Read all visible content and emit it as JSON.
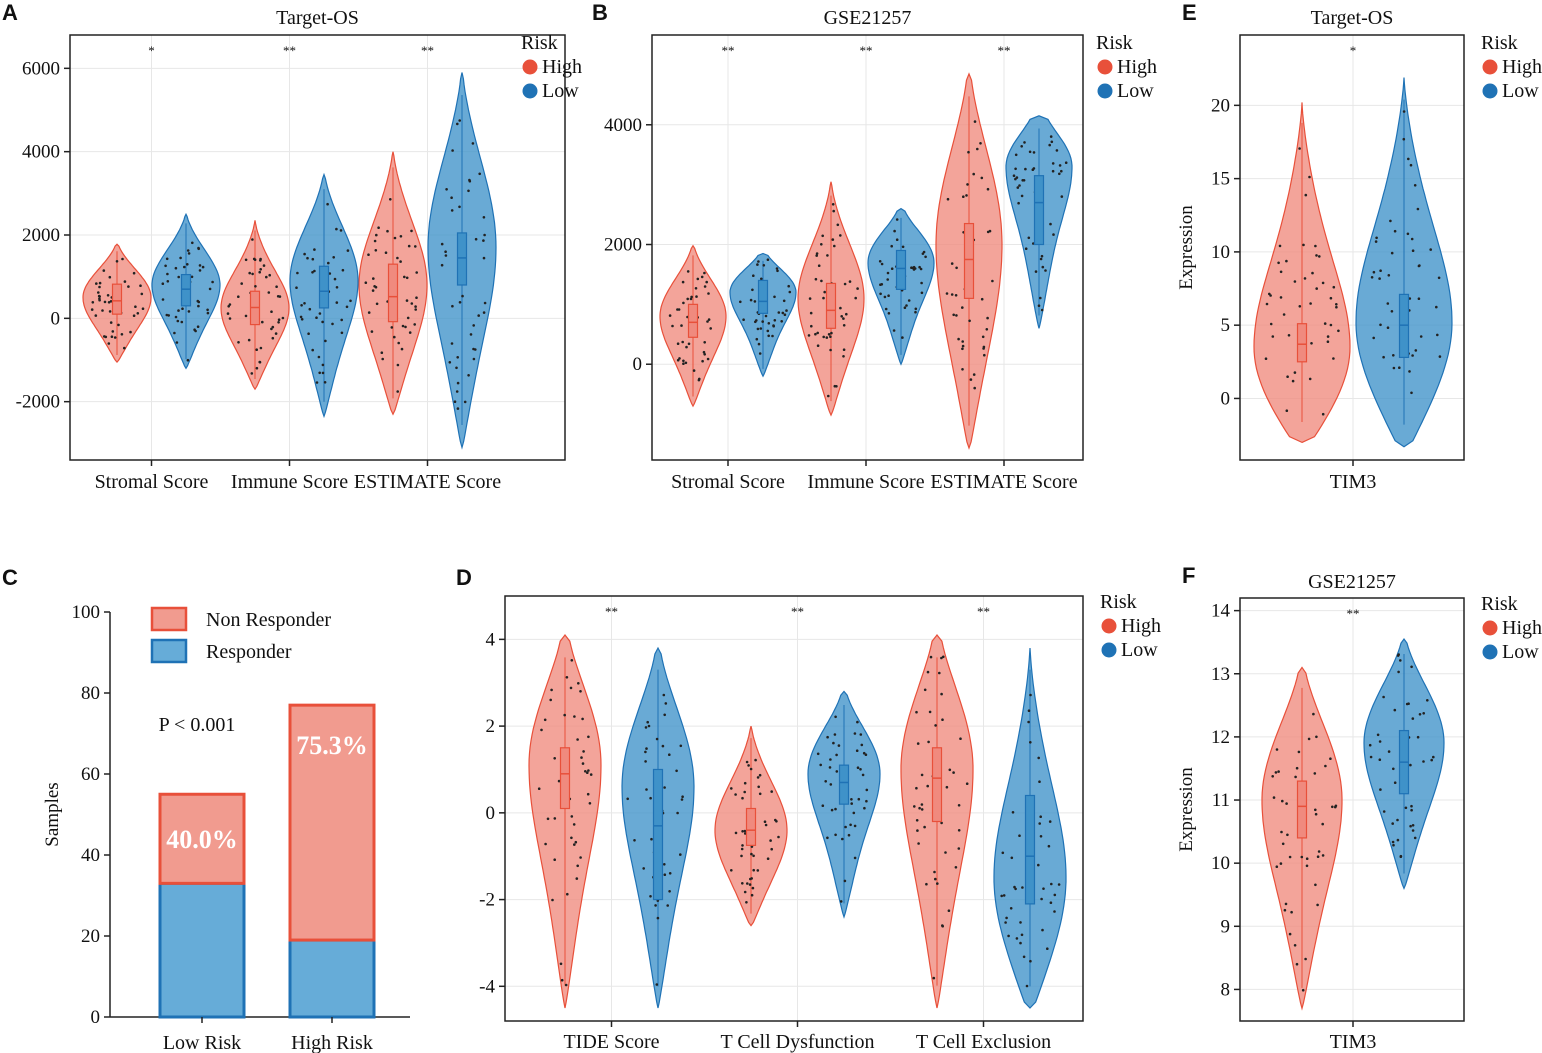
{
  "colors": {
    "high_fill": "#f08a7e",
    "high_stroke": "#e8503a",
    "low_fill": "#3f92c9",
    "low_stroke": "#1f72b5",
    "high_dot": "#e8503a",
    "low_dot": "#1f72b5",
    "bar_red_fill": "#f19b8f",
    "bar_red_stroke": "#e8503a",
    "bar_blue_fill": "#66acd8",
    "bar_blue_stroke": "#1f72b5"
  },
  "chart_data": [
    {
      "id": "A",
      "label": "A",
      "type": "violin",
      "title": "Target-OS",
      "ylabel": "",
      "ylim": [
        -3400,
        6800
      ],
      "yticks": [
        -2000,
        0,
        2000,
        4000,
        6000
      ],
      "yticklabels": [
        "-2000",
        "0",
        "2000",
        "4000",
        "6000"
      ],
      "categories": [
        "Stromal Score",
        "Immune Score",
        "ESTIMATE Score"
      ],
      "significance": [
        "*",
        "**",
        "**"
      ],
      "legend": {
        "title": "Risk",
        "items": [
          "High",
          "Low"
        ]
      },
      "series": [
        {
          "name": "High",
          "violins": [
            {
              "min": -1050,
              "q1": 100,
              "median": 420,
              "q3": 820,
              "max": 1780,
              "mode": 500,
              "spread": 0.85
            },
            {
              "min": -1700,
              "q1": -150,
              "median": 260,
              "q3": 650,
              "max": 2350,
              "mode": 250,
              "spread": 0.7
            },
            {
              "min": -2300,
              "q1": -80,
              "median": 520,
              "q3": 1300,
              "max": 4000,
              "mode": 800,
              "spread": 0.8
            }
          ]
        },
        {
          "name": "Low",
          "violins": [
            {
              "min": -1200,
              "q1": 300,
              "median": 700,
              "q3": 1050,
              "max": 2500,
              "mode": 800,
              "spread": 0.75
            },
            {
              "min": -2350,
              "q1": 250,
              "median": 650,
              "q3": 1250,
              "max": 3450,
              "mode": 900,
              "spread": 0.75
            },
            {
              "min": -3100,
              "q1": 800,
              "median": 1450,
              "q3": 2050,
              "max": 5900,
              "mode": 1700,
              "spread": 0.8
            }
          ]
        }
      ]
    },
    {
      "id": "B",
      "label": "B",
      "type": "violin",
      "title": "GSE21257",
      "ylabel": "",
      "ylim": [
        -1600,
        5500
      ],
      "yticks": [
        0,
        2000,
        4000
      ],
      "yticklabels": [
        "0",
        "2000",
        "4000"
      ],
      "categories": [
        "Stromal Score",
        "Immune Score",
        "ESTIMATE Score"
      ],
      "significance": [
        "**",
        "**",
        "**"
      ],
      "legend": {
        "title": "Risk",
        "items": [
          "High",
          "Low"
        ]
      },
      "series": [
        {
          "name": "High",
          "violins": [
            {
              "min": -700,
              "q1": 450,
              "median": 700,
              "q3": 1000,
              "max": 1980,
              "mode": 800,
              "spread": 0.8
            },
            {
              "min": -850,
              "q1": 600,
              "median": 900,
              "q3": 1350,
              "max": 3050,
              "mode": 1100,
              "spread": 0.75
            },
            {
              "min": -1400,
              "q1": 1100,
              "median": 1750,
              "q3": 2350,
              "max": 4850,
              "mode": 2000,
              "spread": 0.95
            }
          ]
        },
        {
          "name": "Low",
          "violins": [
            {
              "min": -200,
              "q1": 850,
              "median": 1050,
              "q3": 1400,
              "max": 1850,
              "mode": 1200,
              "spread": 0.8
            },
            {
              "min": 0,
              "q1": 1250,
              "median": 1600,
              "q3": 1900,
              "max": 2600,
              "mode": 1700,
              "spread": 0.8
            },
            {
              "min": 600,
              "q1": 2000,
              "median": 2700,
              "q3": 3150,
              "max": 4150,
              "mode": 3300,
              "spread": 0.85
            }
          ]
        }
      ]
    },
    {
      "id": "C",
      "label": "C",
      "type": "bar",
      "stacked": true,
      "title": "",
      "ylabel": "Samples",
      "ylim": [
        0,
        100
      ],
      "yticks": [
        0,
        20,
        40,
        60,
        80,
        100
      ],
      "yticklabels": [
        "0",
        "20",
        "40",
        "60",
        "80",
        "100"
      ],
      "categories": [
        "Low Risk",
        "High Risk"
      ],
      "series": [
        {
          "name": "Responder",
          "values": [
            33,
            19
          ]
        },
        {
          "name": "Non Responder",
          "values": [
            22,
            58
          ]
        }
      ],
      "percent_labels": [
        "40.0%",
        "75.3%"
      ],
      "annotation": "P < 0.001",
      "legend": {
        "items": [
          "Non Responder",
          "Responder"
        ]
      }
    },
    {
      "id": "D",
      "label": "D",
      "type": "violin",
      "title": "",
      "ylabel": "",
      "ylim": [
        -4.8,
        5.0
      ],
      "yticks": [
        -4,
        -2,
        0,
        2,
        4
      ],
      "yticklabels": [
        "-4",
        "-2",
        "0",
        "2",
        "4"
      ],
      "categories": [
        "TIDE Score",
        "T Cell Dysfunction",
        "T Cell Exclusion"
      ],
      "significance": [
        "**",
        "**",
        "**"
      ],
      "legend": {
        "title": "Risk",
        "items": [
          "High",
          "Low"
        ]
      },
      "series": [
        {
          "name": "High",
          "violins": [
            {
              "min": -4.5,
              "q1": 0.1,
              "median": 0.9,
              "q3": 1.5,
              "max": 4.1,
              "mode": 1.1,
              "spread": 0.85
            },
            {
              "min": -2.6,
              "q1": -0.75,
              "median": -0.4,
              "q3": 0.1,
              "max": 2.0,
              "mode": -0.4,
              "spread": 0.8
            },
            {
              "min": -4.5,
              "q1": -0.2,
              "median": 0.8,
              "q3": 1.5,
              "max": 4.1,
              "mode": 1.0,
              "spread": 0.9
            }
          ]
        },
        {
          "name": "Low",
          "violins": [
            {
              "min": -4.5,
              "q1": -2.0,
              "median": -0.3,
              "q3": 1.0,
              "max": 3.8,
              "mode": 0.6,
              "spread": 0.8
            },
            {
              "min": -2.4,
              "q1": 0.2,
              "median": 0.7,
              "q3": 1.1,
              "max": 2.8,
              "mode": 0.9,
              "spread": 0.75
            },
            {
              "min": -4.5,
              "q1": -2.1,
              "median": -1.0,
              "q3": 0.4,
              "max": 3.8,
              "mode": -1.5,
              "spread": 0.85
            }
          ]
        }
      ]
    },
    {
      "id": "E",
      "label": "E",
      "type": "violin",
      "title": "Target-OS",
      "ylabel": "Expression",
      "ylim": [
        -4.2,
        24.8
      ],
      "yticks": [
        0,
        5,
        10,
        15,
        20
      ],
      "yticklabels": [
        "0",
        "5",
        "10",
        "15",
        "20"
      ],
      "categories": [
        "TIM3"
      ],
      "significance": [
        "*"
      ],
      "legend": {
        "title": "Risk",
        "items": [
          "High",
          "Low"
        ]
      },
      "series": [
        {
          "name": "High",
          "violins": [
            {
              "min": -3.0,
              "q1": 2.5,
              "median": 3.7,
              "q3": 5.1,
              "max": 20.2,
              "mode": 3.5,
              "spread": 0.85
            }
          ]
        },
        {
          "name": "Low",
          "violins": [
            {
              "min": -3.3,
              "q1": 2.8,
              "median": 5.0,
              "q3": 7.1,
              "max": 21.9,
              "mode": 5.2,
              "spread": 0.85
            }
          ]
        }
      ]
    },
    {
      "id": "F",
      "label": "F",
      "type": "violin",
      "title": "GSE21257",
      "ylabel": "Expression",
      "ylim": [
        7.5,
        14.2
      ],
      "yticks": [
        8,
        9,
        10,
        11,
        12,
        13,
        14
      ],
      "yticklabels": [
        "8",
        "9",
        "10",
        "11",
        "12",
        "13",
        "14"
      ],
      "categories": [
        "TIM3"
      ],
      "significance": [
        "**"
      ],
      "legend": {
        "title": "Risk",
        "items": [
          "High",
          "Low"
        ]
      },
      "series": [
        {
          "name": "High",
          "violins": [
            {
              "min": 7.7,
              "q1": 10.4,
              "median": 10.9,
              "q3": 11.3,
              "max": 13.1,
              "mode": 11.0,
              "spread": 0.85
            }
          ]
        },
        {
          "name": "Low",
          "violins": [
            {
              "min": 9.6,
              "q1": 11.1,
              "median": 11.6,
              "q3": 12.1,
              "max": 13.55,
              "mode": 11.9,
              "spread": 0.85
            }
          ]
        }
      ]
    }
  ]
}
